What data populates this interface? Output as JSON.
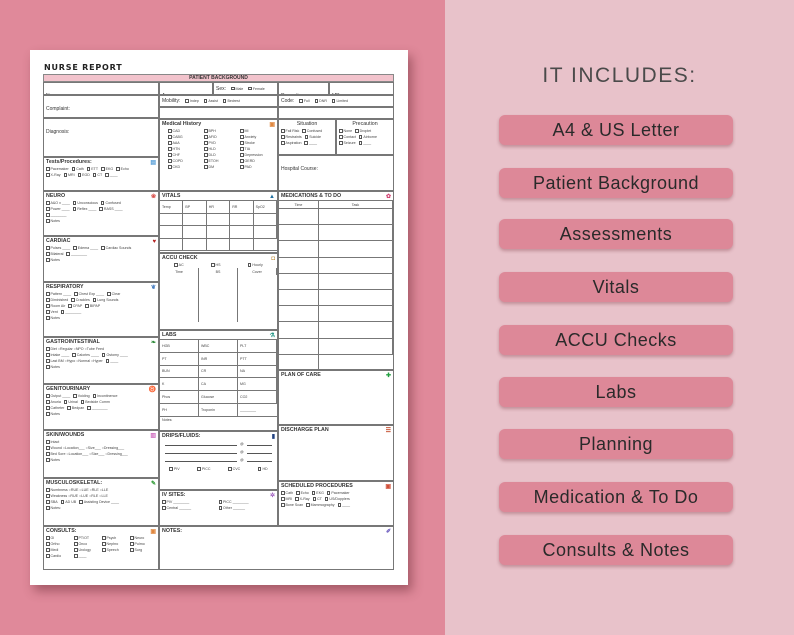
{
  "document": {
    "title": "NURSE REPORT",
    "header": "PATIENT BACKGROUND",
    "fields": {
      "name": "Name:",
      "age": "Age:",
      "sex": "Sex:",
      "sex_options": [
        "Male",
        "Female"
      ],
      "room": "Room #:",
      "md": "MD:",
      "complaint": "Complaint:",
      "mobility": "Mobility:",
      "mobility_options": [
        "Indep",
        "Assist",
        "Bedrest"
      ],
      "code": "Code:",
      "code_options": [
        "Full",
        "DNR",
        "Limited"
      ],
      "allergies": "Allergies:",
      "admit_date": "Admit Date:",
      "diagnosis": "Diagnosis:",
      "hospital_course": "Hospital Course:"
    },
    "sections": {
      "tests": {
        "title": "Tests/Procedures:",
        "icon": "document-icon",
        "rows": [
          [
            "Pacemaker",
            "Cath",
            "ETT",
            "EKG",
            "Echo"
          ],
          [
            "X-Ray",
            "MRI",
            "EGD",
            "CT",
            "____"
          ]
        ]
      },
      "neuro": {
        "title": "NEURO",
        "icon": "brain-icon",
        "rows": [
          [
            "A&O x ____",
            "Unconscious",
            "Confused"
          ],
          [
            "Power ____",
            "Reflex ____",
            "RASS ____"
          ],
          [
            "________"
          ],
          [
            "Notes"
          ]
        ]
      },
      "cardiac": {
        "title": "CARDIAC",
        "icon": "heart-icon",
        "rows": [
          [
            "Pulses ____",
            "Edema ____",
            "Cardiac Sounds"
          ],
          [
            "Bilateral",
            "________"
          ],
          [
            "Notes"
          ]
        ]
      },
      "respiratory": {
        "title": "RESPIRATORY",
        "icon": "lungs-icon",
        "rows": [
          [
            "Pattern ____",
            "Chest Exp ____",
            "Clear"
          ],
          [
            "Diminished",
            "Crackles",
            "Lung Sounds"
          ],
          [
            "Room Air",
            "CPAP",
            "BIPAP"
          ],
          [
            "Vent",
            "________"
          ],
          [
            "Notes"
          ]
        ]
      },
      "gi": {
        "title": "GASTROINTESTINAL",
        "icon": "stomach-icon",
        "rows": [
          [
            "Diet ○Regular ○NPO ○Tube Feed"
          ],
          [
            "Intake ____",
            "Calories ____",
            "Ostomy ____"
          ],
          [
            "Last BM ○Hypo ○Normal ○Hyper",
            "____"
          ],
          [
            "Notes"
          ]
        ]
      },
      "gu": {
        "title": "GENITOURINARY",
        "icon": "kidney-icon",
        "rows": [
          [
            "Output ____",
            "Voiding",
            "Incontinence"
          ],
          [
            "Anuria",
            "Urinal",
            "Bedside Comm"
          ],
          [
            "Catheter",
            "Bedpan",
            "________"
          ],
          [
            "Notes"
          ]
        ]
      },
      "skin": {
        "title": "SKIN/WOUNDS",
        "icon": "skin-icon",
        "rows": [
          [
            "Intact"
          ],
          [
            "Wound ○Location___ ○Size___ ○Dressing___"
          ],
          [
            "Bed Sore ○Location___ ○Size___ ○Dressing___"
          ],
          [
            "Notes"
          ]
        ]
      },
      "msk": {
        "title": "MUSCULOSKELETAL:",
        "icon": "bone-icon",
        "rows": [
          [
            "Numbness ○RUE ○LUE ○RLE ○LLE"
          ],
          [
            "Weakness ○RUE ○LUE ○RLE ○LLE"
          ],
          [
            "SBA",
            "AD UB",
            "Assisting Device ____"
          ],
          [
            "Notes:"
          ]
        ]
      },
      "consults": {
        "title": "CONSULTS:",
        "icon": "clipboard-icon",
        "rows": [
          [
            "GI",
            "PT/OT",
            "Psych",
            "Neuro"
          ],
          [
            "Ortho",
            "Onco",
            "Nephro",
            "Pulmo"
          ],
          [
            "Medi",
            "Urology",
            "Speech",
            "Surg"
          ],
          [
            "Cardio",
            "____"
          ]
        ]
      },
      "medical_history": {
        "title": "Medical History",
        "icon": "clipboard-icon",
        "rows": [
          [
            "CAD",
            "BPH",
            "MI"
          ],
          [
            "CABG",
            "AFID",
            "Anxiety"
          ],
          [
            "AAA",
            "PVD",
            "Stroke"
          ],
          [
            "HTN",
            "HLD",
            "TIA"
          ],
          [
            "CHF",
            "DLD",
            "Depression"
          ],
          [
            "COPD",
            "ETOH",
            "GERD"
          ],
          [
            "CKD",
            "DM",
            "PAD"
          ]
        ]
      },
      "situation": {
        "title": "Situation",
        "rows": [
          [
            "Fall Risk",
            "Confused"
          ],
          [
            "Restraints",
            "Suicide"
          ],
          [
            "Aspiration",
            "____"
          ]
        ]
      },
      "precaution": {
        "title": "Precaution",
        "rows": [
          [
            "None",
            "Droplet"
          ],
          [
            "Contact",
            "Airborne"
          ],
          [
            "Seizure",
            "____"
          ]
        ]
      },
      "scheduled": {
        "title": "SCHEDULED PROCEDURES",
        "icon": "clipboard-search-icon",
        "rows": [
          [
            "Cath",
            "Echo",
            "EKG",
            "Pacemaker"
          ],
          [
            "MRI",
            "X-Ray",
            "CT",
            "US/Dopplers"
          ],
          [
            "Bone Scan",
            "Mammography",
            "____"
          ]
        ]
      }
    },
    "vitals": {
      "title": "VITALS",
      "columns": [
        "Temp",
        "BP",
        "HR",
        "RR",
        "SpO2"
      ]
    },
    "accu_check": {
      "title": "ACCU CHECK",
      "options": [
        "AC",
        "HS",
        "Hourly"
      ],
      "columns": [
        "Time",
        "BS",
        "Cover"
      ]
    },
    "labs": {
      "title": "LABS",
      "cells": [
        [
          "HGB",
          "WBC",
          "PLT"
        ],
        [
          "PT",
          "INR",
          "PTT"
        ],
        [
          "BUN",
          "CR",
          "NA"
        ],
        [
          "K",
          "CA",
          "MG"
        ],
        [
          "Phos",
          "Glucose",
          "CO2"
        ],
        [
          "PH",
          "Troponin",
          "________"
        ]
      ],
      "notes": "Notes:"
    },
    "medications": {
      "title": "MEDICATIONS & TO DO",
      "columns": [
        "Time",
        "Task"
      ]
    },
    "plan_of_care": {
      "title": "PLAN OF CARE"
    },
    "discharge_plan": {
      "title": "DISCHARGE PLAN"
    },
    "drips": {
      "title": "DRIPS/FLUIDS:",
      "at": "@",
      "options": [
        "PIV",
        "PICC",
        "CVC",
        "HD"
      ]
    },
    "iv_sites": {
      "title": "IV SITES:",
      "items": [
        "PIV ________",
        "PICC ________",
        "Central ______",
        "Other ______"
      ]
    },
    "notes": {
      "title": "NOTES:"
    }
  },
  "includes": {
    "title": "IT INCLUDES:",
    "items": [
      "A4 & US Letter",
      "Patient Background",
      "Assessments",
      "Vitals",
      "ACCU Checks",
      "Labs",
      "Planning",
      "Medication & To Do",
      "Consults & Notes"
    ]
  },
  "colors": {
    "left_bg": "#e0899a",
    "right_bg": "#e8c2ca",
    "button": "#dd8898",
    "header_bar": "#f2c3cc"
  }
}
